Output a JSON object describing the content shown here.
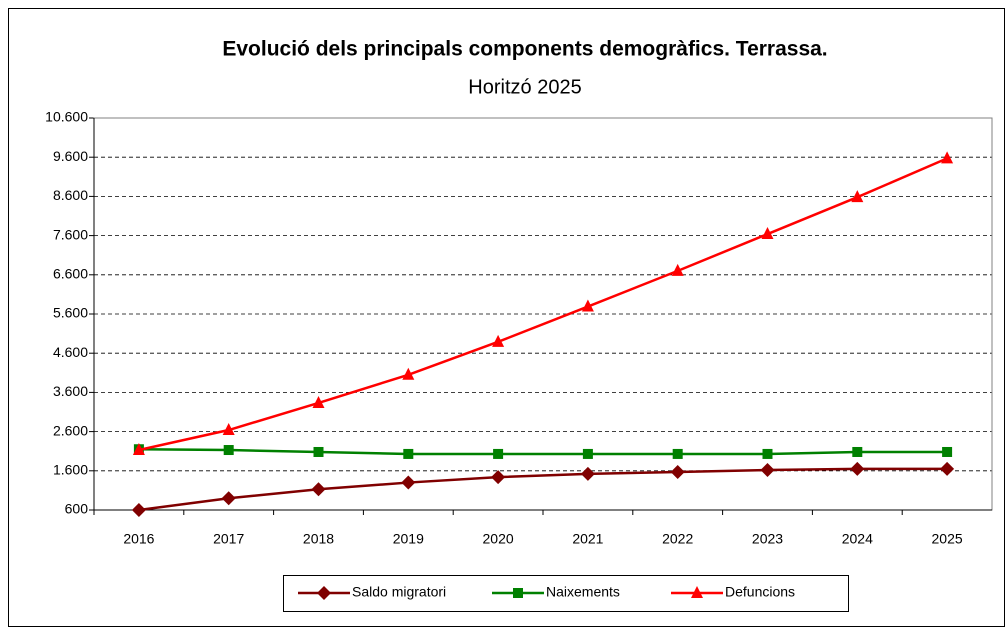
{
  "chart_data": {
    "type": "line",
    "title": "Evolució dels principals components demogràfics. Terrassa.",
    "subtitle": "Horitzó 2025",
    "categories": [
      "2016",
      "2017",
      "2018",
      "2019",
      "2020",
      "2021",
      "2022",
      "2023",
      "2024",
      "2025"
    ],
    "series": [
      {
        "name": "Saldo migratori",
        "color": "#800000",
        "marker": "diamond",
        "values": [
          600,
          900,
          1130,
          1300,
          1440,
          1520,
          1570,
          1620,
          1650,
          1650
        ]
      },
      {
        "name": "Naixements",
        "color": "#008000",
        "marker": "square",
        "values": [
          2150,
          2130,
          2080,
          2030,
          2030,
          2030,
          2030,
          2030,
          2080,
          2080
        ]
      },
      {
        "name": "Defuncions",
        "color": "#ff0000",
        "marker": "triangle",
        "values": [
          2130,
          2640,
          3330,
          4050,
          4890,
          5790,
          6700,
          7640,
          8580,
          9570
        ]
      }
    ],
    "ylim": [
      600,
      10600
    ],
    "yticks": [
      {
        "value": 600,
        "label": "600"
      },
      {
        "value": 1600,
        "label": "1.600"
      },
      {
        "value": 2600,
        "label": "2.600"
      },
      {
        "value": 3600,
        "label": "3.600"
      },
      {
        "value": 4600,
        "label": "4.600"
      },
      {
        "value": 5600,
        "label": "5.600"
      },
      {
        "value": 6600,
        "label": "6.600"
      },
      {
        "value": 7600,
        "label": "7.600"
      },
      {
        "value": 8600,
        "label": "8.600"
      },
      {
        "value": 9600,
        "label": "9.600"
      },
      {
        "value": 10600,
        "label": "10.600"
      }
    ],
    "grid": true,
    "legend": "bottom"
  }
}
